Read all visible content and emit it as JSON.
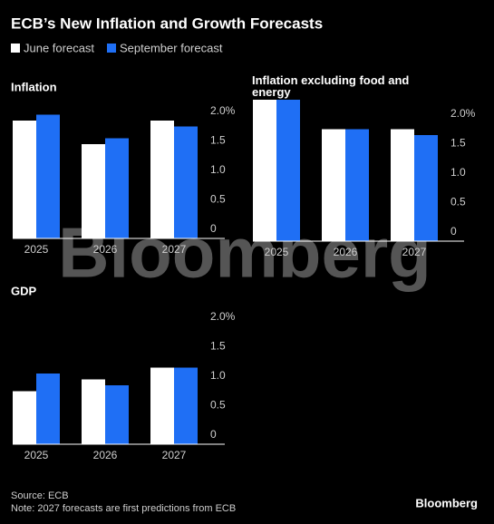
{
  "title": "ECB’s New Inflation and Growth Forecasts",
  "watermark": "Bloomberg",
  "source": "Source: ECB",
  "note": "Note: 2027 forecasts are first predictions from ECB",
  "brand": "Bloomberg",
  "chart_data": [
    {
      "type": "bar",
      "title": "Inflation",
      "categories": [
        "2025",
        "2026",
        "2027"
      ],
      "series": [
        {
          "name": "June forecast",
          "color": "#ffffff",
          "values": [
            2.0,
            1.6,
            2.0
          ]
        },
        {
          "name": "September forecast",
          "color": "#1f6ff5",
          "values": [
            2.1,
            1.7,
            1.9
          ]
        }
      ],
      "ylim": [
        0,
        2.4
      ],
      "yticks": [
        {
          "value": 2,
          "label": "2.0%"
        },
        {
          "value": 1.5,
          "label": "1.5"
        },
        {
          "value": 1,
          "label": "1.0"
        },
        {
          "value": 0.5,
          "label": "0.5"
        },
        0
      ]
    },
    {
      "type": "bar",
      "title": "Inflation excluding food and energy",
      "categories": [
        "2025",
        "2026",
        "2027"
      ],
      "series": [
        {
          "name": "June forecast",
          "color": "#ffffff",
          "values": [
            2.4,
            1.9,
            1.9
          ]
        },
        {
          "name": "September forecast",
          "color": "#1f6ff5",
          "values": [
            2.4,
            1.9,
            1.8
          ]
        }
      ],
      "ylim": [
        0,
        2.4
      ],
      "yticks": [
        {
          "value": 2,
          "label": "2.0%"
        },
        {
          "value": 1.5,
          "label": "1.5"
        },
        {
          "value": 1,
          "label": "1.0"
        },
        {
          "value": 0.5,
          "label": "0.5"
        },
        0
      ]
    },
    {
      "type": "bar",
      "title": "GDP",
      "categories": [
        "2025",
        "2026",
        "2027"
      ],
      "series": [
        {
          "name": "June forecast",
          "color": "#ffffff",
          "values": [
            0.9,
            1.1,
            1.3
          ]
        },
        {
          "name": "September forecast",
          "color": "#1f6ff5",
          "values": [
            1.2,
            1.0,
            1.3
          ]
        }
      ],
      "ylim": [
        0,
        2.4
      ],
      "yticks": [
        {
          "value": 2,
          "label": "2.0%"
        },
        {
          "value": 1.5,
          "label": "1.5"
        },
        {
          "value": 1,
          "label": "1.0"
        },
        {
          "value": 0.5,
          "label": "0.5"
        },
        0
      ]
    }
  ]
}
